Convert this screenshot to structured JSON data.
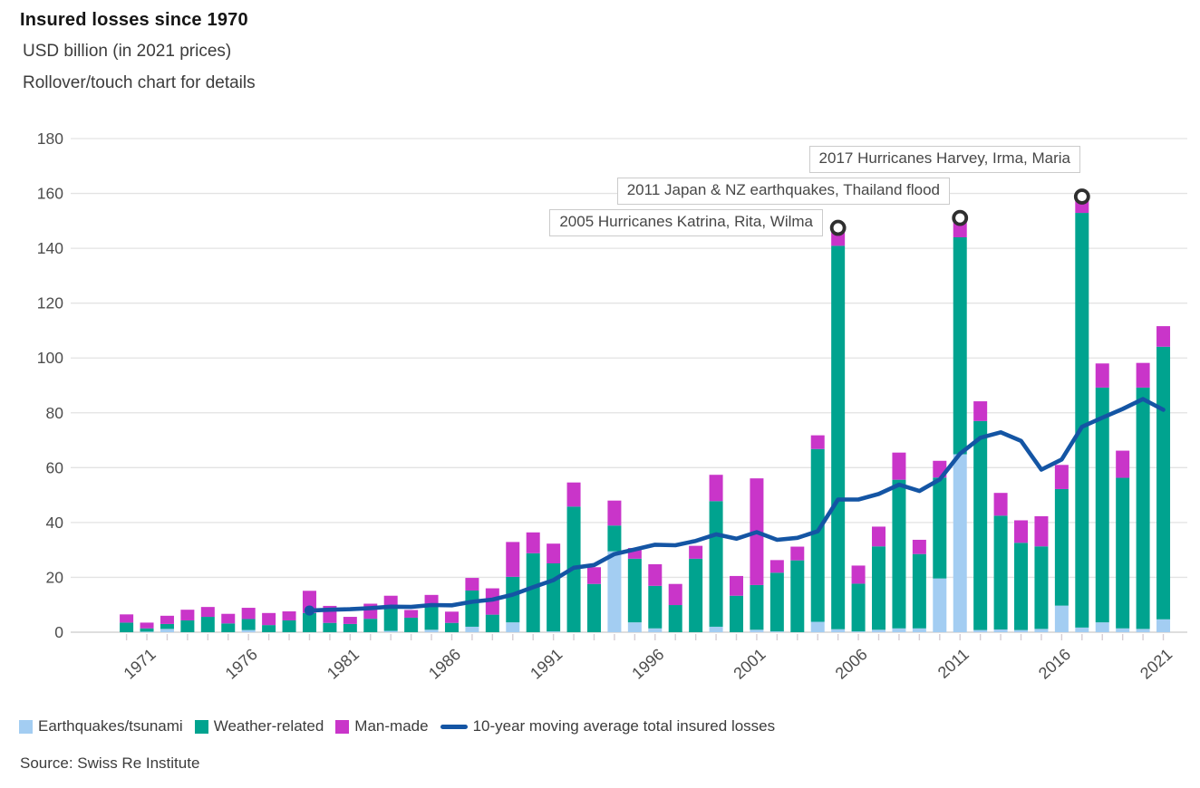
{
  "header": {
    "title": "Insured losses since 1970",
    "subtitle": "USD billion (in 2021 prices)",
    "hint": "Rollover/touch chart for details"
  },
  "source": "Source: Swiss Re Institute",
  "colors": {
    "earthquake": "#A3CDF2",
    "weather": "#00A38F",
    "man_made": "#C935C9",
    "moving_average": "#1455A4",
    "grid": "#E3E3E3",
    "baseline": "#C9C9C9",
    "tick": "#D5CDD3",
    "axis_text": "#4D4D4D",
    "marker_stroke": "#2F2F2F",
    "annotation_border": "#CBCBCB"
  },
  "legend": [
    {
      "label": "Earthquakes/tsunami",
      "type": "swatch",
      "color_key": "earthquake"
    },
    {
      "label": "Weather-related",
      "type": "swatch",
      "color_key": "weather"
    },
    {
      "label": "Man-made",
      "type": "swatch",
      "color_key": "man_made"
    },
    {
      "label": "10-year moving average total insured losses",
      "type": "line",
      "color_key": "moving_average"
    }
  ],
  "annotations": [
    {
      "year": 2005,
      "label": "2005 Hurricanes Katrina, Rita, Wilma"
    },
    {
      "year": 2011,
      "label": "2011 Japan & NZ earthquakes, Thailand flood"
    },
    {
      "year": 2017,
      "label": "2017 Hurricanes Harvey, Irma, Maria"
    }
  ],
  "chart_data": {
    "type": "bar",
    "stacked": true,
    "title": "Insured losses since 1970",
    "ylabel": "USD billion (in 2021 prices)",
    "ylim": [
      0,
      180
    ],
    "ytick_step": 20,
    "grid": true,
    "legend_position": "bottom",
    "x": [
      1970,
      1971,
      1972,
      1973,
      1974,
      1975,
      1976,
      1977,
      1978,
      1979,
      1980,
      1981,
      1982,
      1983,
      1984,
      1985,
      1986,
      1987,
      1988,
      1989,
      1990,
      1991,
      1992,
      1993,
      1994,
      1995,
      1996,
      1997,
      1998,
      1999,
      2000,
      2001,
      2002,
      2003,
      2004,
      2005,
      2006,
      2007,
      2008,
      2009,
      2010,
      2011,
      2012,
      2013,
      2014,
      2015,
      2016,
      2017,
      2018,
      2019,
      2020,
      2021
    ],
    "xtick_labels": [
      "1971",
      "1976",
      "1981",
      "1986",
      "1991",
      "1996",
      "2001",
      "2006",
      "2011",
      "2016",
      "2021"
    ],
    "series": [
      {
        "name": "Earthquakes/tsunami",
        "values": [
          0,
          0.2,
          1.2,
          0,
          0,
          0,
          0.8,
          0,
          0,
          0,
          0,
          0,
          0,
          0.5,
          0,
          0.9,
          0,
          2,
          0,
          3.6,
          0,
          0.3,
          0,
          0,
          29.5,
          3.6,
          1.4,
          0,
          0,
          2,
          0,
          0.9,
          0.3,
          0,
          3.8,
          1.1,
          0.3,
          0.9,
          1.4,
          1.4,
          19.6,
          64.9,
          0.8,
          1,
          0.8,
          1.2,
          9.7,
          1.7,
          3.6,
          1.4,
          1.2,
          4.7
        ]
      },
      {
        "name": "Weather-related",
        "values": [
          3.5,
          1.2,
          1.8,
          4.3,
          5.6,
          3.2,
          4,
          2.6,
          4.3,
          7,
          3.4,
          3,
          4.9,
          8.6,
          5.3,
          9.1,
          3.4,
          13.2,
          6.4,
          16.6,
          28.8,
          24.8,
          45.8,
          17.6,
          9.4,
          23.2,
          15.5,
          9.9,
          26.8,
          45.8,
          13.3,
          16.3,
          21.4,
          26.2,
          63,
          139.8,
          17.4,
          30.4,
          54.2,
          27.1,
          36.8,
          79.1,
          76.2,
          41.5,
          31.8,
          30.1,
          42.5,
          151.2,
          85.6,
          54.9,
          88,
          99.4
        ]
      },
      {
        "name": "Man-made",
        "values": [
          3,
          2.1,
          3,
          3.9,
          3.6,
          3.5,
          4.1,
          4.4,
          3.3,
          8.1,
          6.2,
          2.6,
          5.5,
          4.2,
          2.8,
          3.6,
          4.1,
          4.6,
          9.6,
          12.7,
          7.6,
          7.2,
          8.8,
          6.1,
          9.1,
          3.9,
          7.9,
          7.7,
          4.7,
          9.6,
          7.2,
          38.9,
          4.6,
          5,
          5,
          5.9,
          6.6,
          7.2,
          9.9,
          5.2,
          6.1,
          6.4,
          7.2,
          8.3,
          8.2,
          11,
          8.8,
          5.3,
          8.8,
          9.9,
          9,
          7.5
        ]
      }
    ],
    "line_series": {
      "name": "10-year moving average total insured losses",
      "x_start": 1979,
      "values": [
        7.9,
        8.2,
        8.4,
        8.8,
        9.3,
        9.2,
        9.9,
        9.8,
        11.1,
        11.9,
        13.7,
        16.4,
        19,
        23.5,
        24.5,
        28.5,
        30.2,
        31.9,
        31.7,
        33.3,
        35.7,
        34.1,
        36.5,
        33.7,
        34.4,
        36.8,
        48.4,
        48.4,
        50.4,
        53.8,
        51.5,
        55.7,
        65.1,
        70.9,
        72.9,
        69.8,
        59.3,
        63,
        74.9,
        78.2,
        81.4,
        85,
        81.1
      ]
    },
    "annotated_years": [
      2005,
      2011,
      2017
    ]
  }
}
